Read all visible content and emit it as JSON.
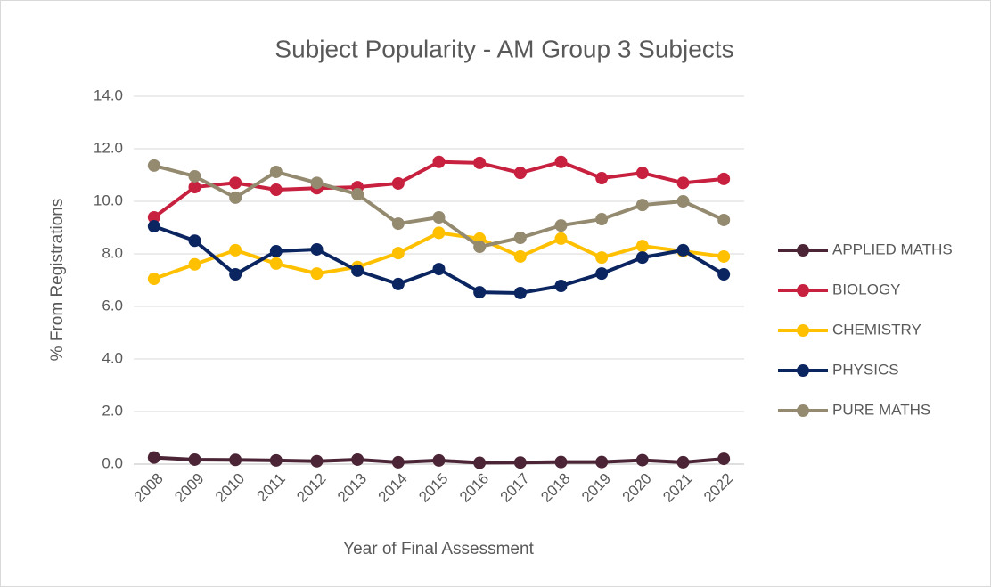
{
  "chart_data": {
    "type": "line",
    "title": "Subject Popularity - AM Group 3 Subjects",
    "x_label": "Year of Final Assessment",
    "y_label": "% From Registrations",
    "categories": [
      "2008",
      "2009",
      "2010",
      "2011",
      "2012",
      "2013",
      "2014",
      "2015",
      "2016",
      "2017",
      "2018",
      "2019",
      "2020",
      "2021",
      "2022"
    ],
    "series": [
      {
        "name": "APPLIED MATHS",
        "color": "#4b2535",
        "values": [
          0.25,
          0.17,
          0.16,
          0.14,
          0.11,
          0.17,
          0.07,
          0.14,
          0.05,
          0.06,
          0.08,
          0.08,
          0.15,
          0.07,
          0.2
        ]
      },
      {
        "name": "BIOLOGY",
        "color": "#c8203f",
        "values": [
          9.39,
          10.54,
          10.7,
          10.44,
          10.5,
          10.54,
          10.68,
          11.5,
          11.46,
          11.08,
          11.5,
          10.88,
          11.08,
          10.7,
          10.85
        ]
      },
      {
        "name": "CHEMISTRY",
        "color": "#ffc000",
        "values": [
          7.05,
          7.6,
          8.14,
          7.63,
          7.25,
          7.5,
          8.03,
          8.8,
          8.58,
          7.9,
          8.58,
          7.86,
          8.3,
          8.1,
          7.9
        ]
      },
      {
        "name": "PHYSICS",
        "color": "#0b2561",
        "values": [
          9.05,
          8.5,
          7.22,
          8.1,
          8.17,
          7.36,
          6.85,
          7.42,
          6.54,
          6.51,
          6.78,
          7.25,
          7.86,
          8.14,
          7.22
        ]
      },
      {
        "name": "PURE MATHS",
        "color": "#948a70",
        "values": [
          11.36,
          10.95,
          10.14,
          11.12,
          10.7,
          10.27,
          9.15,
          9.39,
          8.27,
          8.61,
          9.08,
          9.32,
          9.86,
          10.0,
          9.29
        ]
      }
    ],
    "ylim": [
      0,
      14
    ],
    "yticks": [
      {
        "value": 0,
        "label": "0.0"
      },
      {
        "value": 2,
        "label": "2.0"
      },
      {
        "value": 4,
        "label": "4.0"
      },
      {
        "value": 6,
        "label": "6.0"
      },
      {
        "value": 8,
        "label": "8.0"
      },
      {
        "value": 10,
        "label": "10.0"
      },
      {
        "value": 12,
        "label": "12.0"
      },
      {
        "value": 14,
        "label": "14.0"
      }
    ],
    "grid": true,
    "legend": "right"
  }
}
